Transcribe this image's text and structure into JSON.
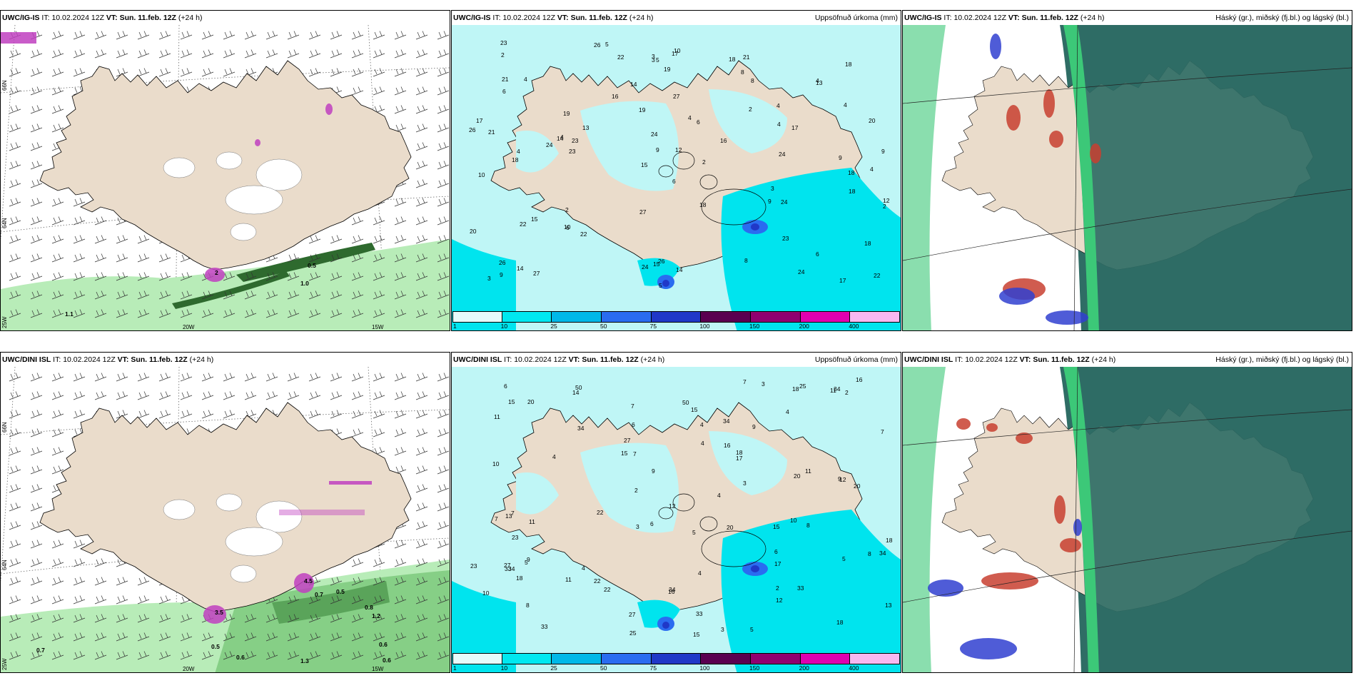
{
  "rows": [
    {
      "wind": {
        "model": "UWC/IG-IS",
        "it_label": "IT:",
        "it": "10.02.2024 12Z",
        "vt_label": "VT:",
        "vt": "Sun. 11.feb. 12Z",
        "lead": "(+24 h)"
      },
      "precip": {
        "model": "UWC/IG-IS",
        "it_label": "IT:",
        "it": "10.02.2024 12Z",
        "vt_label": "VT:",
        "vt": "Sun. 11.feb. 12Z",
        "lead": "(+24 h)",
        "title": "Uppsöfnuð úrkoma (mm)"
      },
      "cloud": {
        "model": "UWC/IG-IS",
        "it_label": "IT:",
        "it": "10.02.2024 12Z",
        "vt_label": "VT:",
        "vt": "Sun. 11.feb. 12Z",
        "lead": "(+24 h)",
        "title": "Háský (gr.), miðský (fj.bl.) og lágský (bl.)"
      }
    },
    {
      "wind": {
        "model": "UWC/DINI ISL",
        "it_label": "IT:",
        "it": "10.02.2024 12Z",
        "vt_label": "VT:",
        "vt": "Sun. 11.feb. 12Z",
        "lead": "(+24 h)"
      },
      "precip": {
        "model": "UWC/DINI ISL",
        "it_label": "IT:",
        "it": "10.02.2024 12Z",
        "vt_label": "VT:",
        "vt": "Sun. 11.feb. 12Z",
        "lead": "(+24 h)",
        "title": "Uppsöfnuð úrkoma (mm)"
      },
      "cloud": {
        "model": "UWC/DINI ISL",
        "it_label": "IT:",
        "it": "10.02.2024 12Z",
        "vt_label": "VT:",
        "vt": "Sun. 11.feb. 12Z",
        "lead": "(+24 h)",
        "title": "Háský (gr.), miðský (fj.bl.) og lágský (bl.)"
      }
    }
  ],
  "map_labels": {
    "lat66": "66N",
    "lat64": "64N",
    "lon25": "25W",
    "lon20": "20W",
    "lon15": "15W"
  },
  "wind_values": [
    [
      "2",
      "0.5",
      "1.0",
      "1.1"
    ],
    [
      "3.5",
      "4.5",
      "0.7",
      "0.5",
      "0.8",
      "1.2",
      "0.6",
      "0.6",
      "0.5",
      "0.7",
      "1.3",
      "0.6"
    ]
  ],
  "precip_values": [
    [
      "4",
      "5",
      "3",
      "6",
      "2",
      "8",
      "9",
      "10",
      "13",
      "17",
      "18",
      "20",
      "21",
      "23",
      "24",
      "26",
      "27",
      "14",
      "15",
      "16",
      "19",
      "12",
      "22",
      "5",
      "4",
      "3"
    ],
    [
      "5",
      "4",
      "3",
      "2",
      "6",
      "7",
      "8",
      "10",
      "11",
      "13",
      "14",
      "18",
      "20",
      "23",
      "25",
      "27",
      "33",
      "34",
      "50",
      "12",
      "17",
      "22",
      "15",
      "9",
      "16"
    ]
  ],
  "colorbar": {
    "ticks": [
      "1",
      "10",
      "25",
      "50",
      "75",
      "100",
      "150",
      "200",
      "400"
    ],
    "colors": [
      "#e6fbfb",
      "#00e8f0",
      "#00b8e8",
      "#2a6cf0",
      "#2038c8",
      "#5a0050",
      "#900070",
      "#e000b0",
      "#f8b8f0"
    ]
  },
  "colors": {
    "land": "#eadccb",
    "sea_wind": "#ffffff",
    "wind_green": "#b8ecb8",
    "wind_green_dark": "#2e6a2e",
    "snow_purple": "#c040c0",
    "precip_light": "#bff6f6",
    "precip_mid": "#00e4ee",
    "cloud_high_green": "#3cc878",
    "cloud_mid": "#2f6d65",
    "cloud_low_blue": "#3040d0",
    "cloud_red": "#c84030"
  }
}
